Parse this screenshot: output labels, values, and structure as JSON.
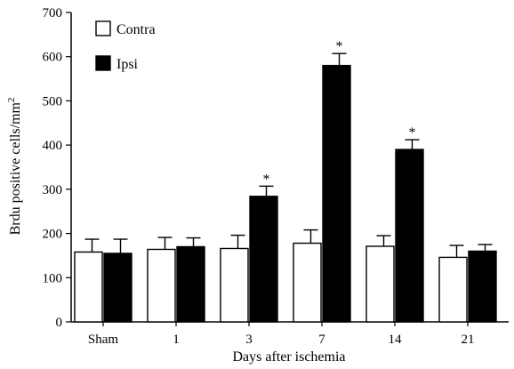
{
  "chart_data": {
    "type": "bar",
    "title": "",
    "xlabel": "Days after ischemia",
    "ylabel": "Brdu positive cells/mm",
    "ylabel_superscript": "2",
    "ylim": [
      0,
      700
    ],
    "yticks": [
      0,
      100,
      200,
      300,
      400,
      500,
      600,
      700
    ],
    "categories": [
      "Sham",
      "1",
      "3",
      "7",
      "14",
      "21"
    ],
    "legend_position": "top-left",
    "series": [
      {
        "name": "Contra",
        "color": "#ffffff",
        "values": [
          158,
          164,
          166,
          178,
          171,
          146
        ],
        "errors": [
          29,
          27,
          30,
          30,
          24,
          27
        ]
      },
      {
        "name": "Ipsi",
        "color": "#000000",
        "values": [
          155,
          170,
          284,
          580,
          390,
          160
        ],
        "errors": [
          32,
          20,
          23,
          27,
          22,
          15
        ]
      }
    ],
    "significance_marks": [
      {
        "category": "3",
        "series": "Ipsi",
        "label": "*"
      },
      {
        "category": "7",
        "series": "Ipsi",
        "label": "*"
      },
      {
        "category": "14",
        "series": "Ipsi",
        "label": "*"
      }
    ]
  }
}
